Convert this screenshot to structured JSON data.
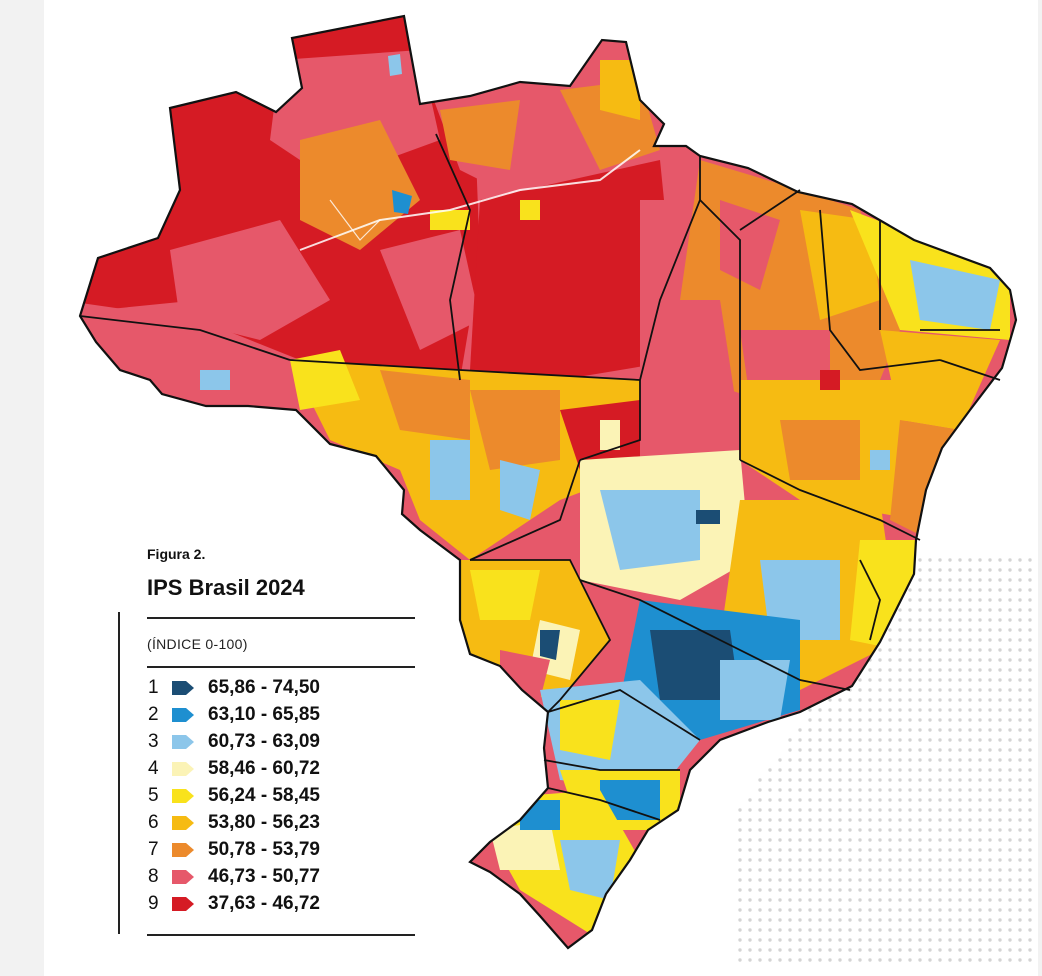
{
  "figure": {
    "label": "Figura 2.",
    "title": "IPS Brasil 2024",
    "subtitle": "(ÍNDICE 0-100)"
  },
  "legend": [
    {
      "class": "1",
      "range": "65,86 - 74,50",
      "color": "#1b4d74"
    },
    {
      "class": "2",
      "range": "63,10 - 65,85",
      "color": "#1e8fd0"
    },
    {
      "class": "3",
      "range": "60,73 - 63,09",
      "color": "#8cc6ea"
    },
    {
      "class": "4",
      "range": "58,46 - 60,72",
      "color": "#fbf3b6"
    },
    {
      "class": "5",
      "range": "56,24 - 58,45",
      "color": "#f9e21c"
    },
    {
      "class": "6",
      "range": "53,80 - 56,23",
      "color": "#f6bb12"
    },
    {
      "class": "7",
      "range": "50,78 - 53,79",
      "color": "#ec8a2c"
    },
    {
      "class": "8",
      "range": "46,73 - 50,77",
      "color": "#e6586a"
    },
    {
      "class": "9",
      "range": "37,63 - 46,72",
      "color": "#d51b24"
    }
  ]
}
